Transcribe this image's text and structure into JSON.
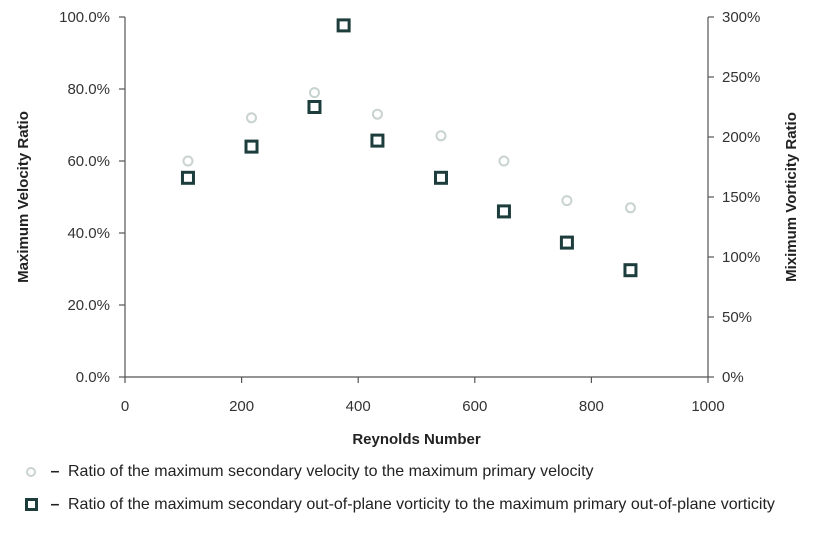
{
  "chart_data": {
    "type": "scatter",
    "xlabel": "Reynolds Number",
    "ylabel_left": "Maximum Velocity Ratio",
    "ylabel_right": "Miximum Vorticity Ratio",
    "xlim": [
      0,
      1000
    ],
    "ylim_left": [
      0,
      100
    ],
    "ylim_right": [
      0,
      300
    ],
    "x_ticks": [
      "0",
      "200",
      "400",
      "600",
      "800",
      "1000"
    ],
    "y_left_ticks": [
      "0.0%",
      "20.0%",
      "40.0%",
      "60.0%",
      "80.0%",
      "100.0%"
    ],
    "y_right_ticks": [
      "0%",
      "50%",
      "100%",
      "150%",
      "200%",
      "250%",
      "300%"
    ],
    "grid": false,
    "legend_position": "bottom",
    "series": [
      {
        "name": "Ratio of the maximum secondary velocity to the maximum primary velocity",
        "axis": "left",
        "marker": "circle",
        "color": "#c9d3d0",
        "x": [
          108,
          217,
          325,
          433,
          542,
          650,
          758,
          867
        ],
        "y": [
          60,
          72,
          79,
          73,
          67,
          60,
          49,
          47
        ]
      },
      {
        "name": "Ratio of the maximum secondary out-of-plane vorticity to the maximum primary out-of-plane vorticity",
        "axis": "right",
        "marker": "square",
        "color": "#1d3c3c",
        "x": [
          108,
          217,
          325,
          375,
          433,
          542,
          650,
          758,
          867
        ],
        "y": [
          166,
          192,
          225,
          293,
          197,
          166,
          138,
          112,
          89
        ]
      }
    ]
  },
  "legend": {
    "dash": "–",
    "items": [
      "Ratio of the maximum secondary velocity to the maximum primary velocity",
      "Ratio of the maximum secondary out-of-plane vorticity to the maximum primary out-of-plane vorticity"
    ]
  }
}
